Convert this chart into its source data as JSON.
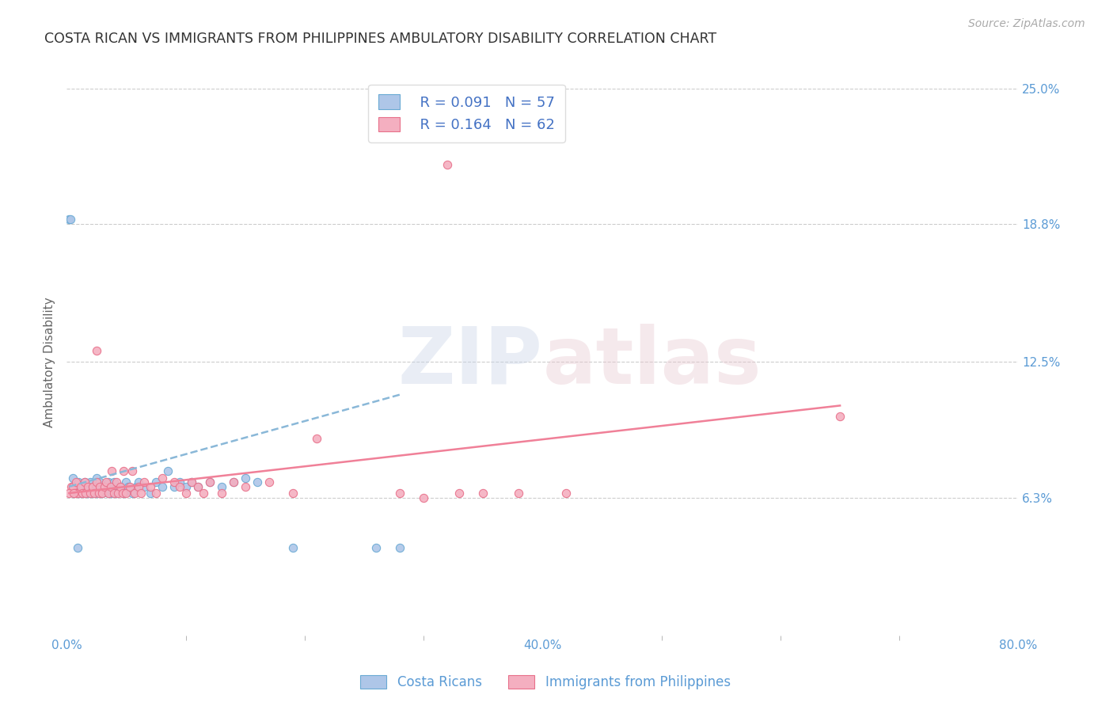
{
  "title": "COSTA RICAN VS IMMIGRANTS FROM PHILIPPINES AMBULATORY DISABILITY CORRELATION CHART",
  "source": "Source: ZipAtlas.com",
  "ylabel": "Ambulatory Disability",
  "xmin": 0.0,
  "xmax": 0.8,
  "ymin": 0.0,
  "ymax": 0.25,
  "yticks": [
    0.063,
    0.125,
    0.188,
    0.25
  ],
  "ytick_labels": [
    "6.3%",
    "12.5%",
    "18.8%",
    "25.0%"
  ],
  "xticks": [
    0.0,
    0.4,
    0.8
  ],
  "xtick_labels": [
    "0.0%",
    "40.0%",
    "80.0%"
  ],
  "blue_color": "#aec6e8",
  "pink_color": "#f4afc0",
  "blue_edge": "#6aaad4",
  "pink_edge": "#e8708a",
  "trend_blue_color": "#8ab8d8",
  "trend_pink_color": "#f08098",
  "legend_R1": "R = 0.091",
  "legend_N1": "N = 57",
  "legend_R2": "R = 0.164",
  "legend_N2": "N = 62",
  "legend_label1": "Costa Ricans",
  "legend_label2": "Immigrants from Philippines",
  "watermark": "ZIPatlas",
  "title_color": "#333333",
  "axis_label_color": "#5b9bd5",
  "legend_text_color": "#4472c4",
  "blue_scatter_x": [
    0.005,
    0.005,
    0.008,
    0.01,
    0.01,
    0.012,
    0.013,
    0.015,
    0.015,
    0.017,
    0.018,
    0.02,
    0.02,
    0.022,
    0.022,
    0.025,
    0.025,
    0.025,
    0.028,
    0.028,
    0.03,
    0.032,
    0.035,
    0.035,
    0.038,
    0.04,
    0.04,
    0.042,
    0.045,
    0.048,
    0.05,
    0.052,
    0.055,
    0.058,
    0.06,
    0.065,
    0.07,
    0.075,
    0.08,
    0.085,
    0.09,
    0.095,
    0.1,
    0.105,
    0.11,
    0.12,
    0.13,
    0.14,
    0.15,
    0.16,
    0.002,
    0.003,
    0.006,
    0.009,
    0.19,
    0.26,
    0.28
  ],
  "blue_scatter_y": [
    0.068,
    0.072,
    0.068,
    0.065,
    0.07,
    0.065,
    0.068,
    0.065,
    0.07,
    0.068,
    0.065,
    0.065,
    0.07,
    0.065,
    0.068,
    0.065,
    0.068,
    0.072,
    0.065,
    0.07,
    0.065,
    0.068,
    0.065,
    0.07,
    0.065,
    0.068,
    0.07,
    0.065,
    0.068,
    0.065,
    0.07,
    0.068,
    0.065,
    0.068,
    0.07,
    0.068,
    0.065,
    0.07,
    0.068,
    0.075,
    0.068,
    0.07,
    0.068,
    0.07,
    0.068,
    0.07,
    0.068,
    0.07,
    0.072,
    0.07,
    0.19,
    0.19,
    0.065,
    0.04,
    0.04,
    0.04,
    0.04
  ],
  "pink_scatter_x": [
    0.004,
    0.005,
    0.007,
    0.008,
    0.01,
    0.012,
    0.013,
    0.015,
    0.016,
    0.018,
    0.02,
    0.022,
    0.023,
    0.025,
    0.027,
    0.028,
    0.03,
    0.032,
    0.033,
    0.035,
    0.037,
    0.038,
    0.04,
    0.042,
    0.043,
    0.045,
    0.047,
    0.048,
    0.05,
    0.053,
    0.055,
    0.057,
    0.06,
    0.062,
    0.065,
    0.07,
    0.075,
    0.08,
    0.09,
    0.095,
    0.1,
    0.105,
    0.11,
    0.115,
    0.12,
    0.13,
    0.14,
    0.15,
    0.17,
    0.19,
    0.21,
    0.28,
    0.33,
    0.35,
    0.38,
    0.42,
    0.002,
    0.006,
    0.025,
    0.3,
    0.65,
    0.32
  ],
  "pink_scatter_y": [
    0.068,
    0.068,
    0.065,
    0.07,
    0.065,
    0.068,
    0.065,
    0.07,
    0.065,
    0.068,
    0.065,
    0.068,
    0.065,
    0.07,
    0.065,
    0.068,
    0.065,
    0.068,
    0.07,
    0.065,
    0.068,
    0.075,
    0.065,
    0.07,
    0.065,
    0.068,
    0.065,
    0.075,
    0.065,
    0.068,
    0.075,
    0.065,
    0.068,
    0.065,
    0.07,
    0.068,
    0.065,
    0.072,
    0.07,
    0.068,
    0.065,
    0.07,
    0.068,
    0.065,
    0.07,
    0.065,
    0.07,
    0.068,
    0.07,
    0.065,
    0.09,
    0.065,
    0.065,
    0.065,
    0.065,
    0.065,
    0.065,
    0.065,
    0.13,
    0.063,
    0.1,
    0.215
  ],
  "blue_trend_x": [
    0.002,
    0.28
  ],
  "blue_trend_y": [
    0.068,
    0.11
  ],
  "pink_trend_x": [
    0.002,
    0.65
  ],
  "pink_trend_y": [
    0.065,
    0.105
  ]
}
